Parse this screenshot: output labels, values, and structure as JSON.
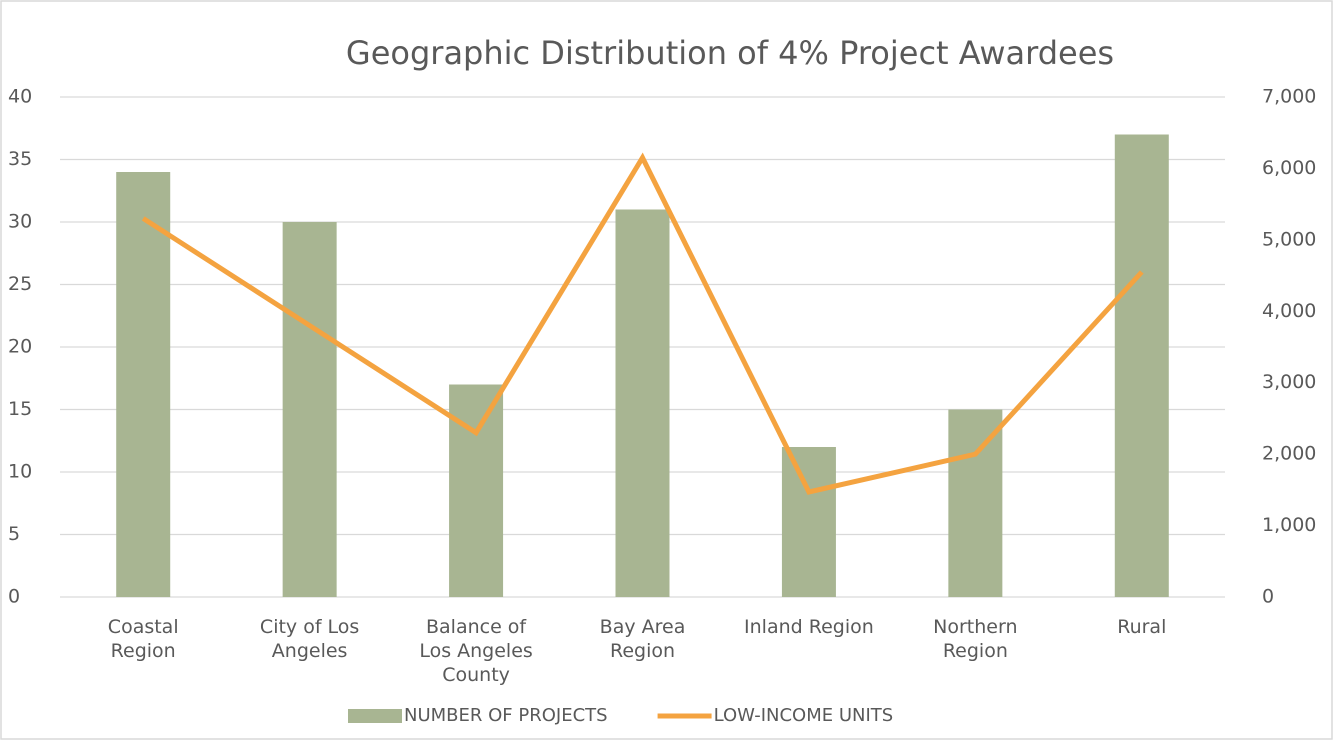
{
  "chart_data": {
    "type": "bar_line",
    "title": "Geographic Distribution of 4% Project Awardees",
    "categories": [
      "Coastal Region",
      "City of Los Angeles",
      "Balance of Los Angeles County",
      "Bay Area Region",
      "Inland Region",
      "Northern Region",
      "Rural"
    ],
    "series": [
      {
        "name": "NUMBER OF PROJECTS",
        "type": "bar",
        "color": "#a8b592",
        "values": [
          34,
          30,
          17,
          31,
          12,
          15,
          37
        ]
      },
      {
        "name": "LOW-INCOME UNITS",
        "type": "line",
        "axis": "y2",
        "color": "#f4a340",
        "values": [
          5300,
          3800,
          2300,
          6150,
          1470,
          2000,
          4550
        ]
      }
    ],
    "ylim": [
      0,
      40
    ],
    "yticks": [
      0,
      5,
      10,
      15,
      20,
      25,
      30,
      35,
      40
    ],
    "y2lim": [
      0,
      7000
    ],
    "y2ticks": [
      0,
      {
        "value": 1000,
        "label": "1,000"
      },
      {
        "value": 2000,
        "label": "2,000"
      },
      {
        "value": 3000,
        "label": "3,000"
      },
      {
        "value": 4000,
        "label": "4,000"
      },
      {
        "value": 5000,
        "label": "5,000"
      },
      {
        "value": 6000,
        "label": "6,000"
      },
      {
        "value": 7000,
        "label": "7,000"
      }
    ],
    "grid": true,
    "legend": "bottom"
  }
}
